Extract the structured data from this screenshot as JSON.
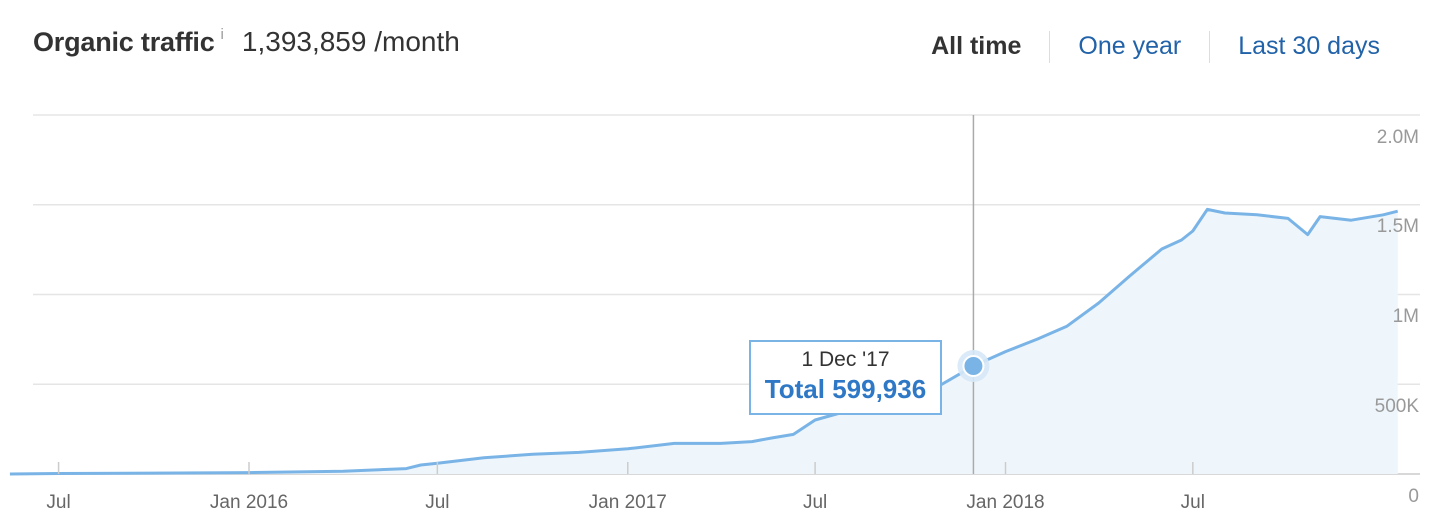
{
  "header": {
    "title": "Organic traffic",
    "info_icon": "info-icon",
    "metric": "1,393,859 /month"
  },
  "ranges": [
    {
      "label": "All time",
      "active": true
    },
    {
      "label": "One year",
      "active": false
    },
    {
      "label": "Last 30 days",
      "active": false
    }
  ],
  "tooltip": {
    "date": "1 Dec '17",
    "total": "Total 599,936"
  },
  "colors": {
    "line": "#7ab4e6",
    "fill": "#eef6fb",
    "grid": "#e5e5e5",
    "link": "#2162a8",
    "tooltip_value": "#2e78c6"
  },
  "chart_data": {
    "type": "area",
    "x_tick_labels": [
      "Jul",
      "Jan 2016",
      "Jul",
      "Jan 2017",
      "Jul",
      "Jan 2018",
      "Jul"
    ],
    "y_tick_labels": [
      "2.0M",
      "1.5M",
      "1M",
      "500K",
      "0"
    ],
    "ylim": [
      0,
      2000000
    ],
    "grid": true,
    "highlight": {
      "date": "2017-12-01",
      "value": 599936
    },
    "series": [
      {
        "x": [
          "2015-05-15",
          "2015-07-01",
          "2015-10-01",
          "2016-01-01",
          "2016-04-01",
          "2016-06-01",
          "2016-06-15",
          "2016-07-01",
          "2016-08-15",
          "2016-10-01",
          "2016-11-15",
          "2017-01-01",
          "2017-02-15",
          "2017-04-01",
          "2017-05-01",
          "2017-05-20",
          "2017-06-10",
          "2017-07-01",
          "2017-08-01",
          "2017-09-01",
          "2017-10-01",
          "2017-11-01",
          "2017-12-01",
          "2018-01-01",
          "2018-02-01",
          "2018-03-01",
          "2018-04-01",
          "2018-05-01",
          "2018-06-01",
          "2018-06-20",
          "2018-07-01",
          "2018-07-15",
          "2018-08-01",
          "2018-09-01",
          "2018-10-01",
          "2018-10-20",
          "2018-11-01",
          "2018-12-01",
          "2019-01-01",
          "2019-01-15"
        ],
        "values": [
          0,
          3000,
          5000,
          8000,
          15000,
          30000,
          50000,
          60000,
          90000,
          110000,
          120000,
          140000,
          170000,
          170000,
          180000,
          200000,
          220000,
          300000,
          350000,
          360000,
          400000,
          500000,
          600000,
          680000,
          750000,
          820000,
          950000,
          1100000,
          1250000,
          1300000,
          1350000,
          1470000,
          1450000,
          1440000,
          1420000,
          1330000,
          1430000,
          1410000,
          1440000,
          1460000
        ]
      }
    ]
  }
}
